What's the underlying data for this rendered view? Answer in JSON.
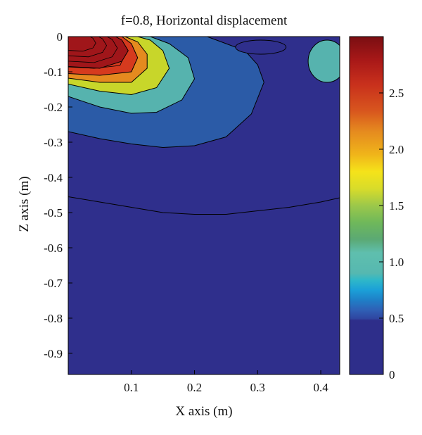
{
  "chart_data": {
    "type": "heatmap",
    "subtype": "filled-contour",
    "title": "f=0.8, Horizontal displacement",
    "xlabel": "X axis (m)",
    "ylabel": "Z axis (m)",
    "xlim": [
      0,
      0.43
    ],
    "ylim": [
      -0.96,
      0
    ],
    "xticks": [
      0.1,
      0.2,
      0.3,
      0.4
    ],
    "xtick_labels": [
      "0.1",
      "0.2",
      "0.3",
      "0.4"
    ],
    "yticks": [
      0,
      -0.1,
      -0.2,
      -0.3,
      -0.4,
      -0.5,
      -0.6,
      -0.7,
      -0.8,
      -0.9
    ],
    "ytick_labels": [
      "0",
      "-0.1",
      "-0.2",
      "-0.3",
      "-0.4",
      "-0.5",
      "-0.6",
      "-0.7",
      "-0.8",
      "-0.9"
    ],
    "colorbar": {
      "range": [
        0,
        3.0
      ],
      "ticks": [
        0,
        0.5,
        1.0,
        1.5,
        2.0,
        2.5
      ],
      "tick_labels": [
        "0",
        "0.5",
        "1.0",
        "1.5",
        "2.0",
        "2.5"
      ],
      "placement": "right"
    },
    "contour_regions": [
      {
        "level": 0.3,
        "color": "#2f2f8c",
        "boundary_z": [
          [
            0.0,
            -0.455
          ],
          [
            0.05,
            -0.47
          ],
          [
            0.1,
            -0.485
          ],
          [
            0.15,
            -0.5
          ],
          [
            0.2,
            -0.505
          ],
          [
            0.25,
            -0.505
          ],
          [
            0.3,
            -0.495
          ],
          [
            0.35,
            -0.485
          ],
          [
            0.4,
            -0.47
          ],
          [
            0.43,
            -0.458
          ]
        ]
      },
      {
        "level": 0.8,
        "color": "#2b5ba7",
        "boundary_z": [
          [
            0.0,
            -0.27
          ],
          [
            0.05,
            -0.29
          ],
          [
            0.1,
            -0.305
          ],
          [
            0.15,
            -0.315
          ],
          [
            0.2,
            -0.31
          ],
          [
            0.25,
            -0.285
          ],
          [
            0.29,
            -0.22
          ],
          [
            0.31,
            -0.13
          ],
          [
            0.3,
            -0.08
          ],
          [
            0.28,
            -0.04
          ],
          [
            0.25,
            -0.02
          ],
          [
            0.22,
            0.0
          ]
        ]
      },
      {
        "level": 1.1,
        "color": "#56b3ae",
        "boundary_z": [
          [
            0.0,
            -0.17
          ],
          [
            0.05,
            -0.2
          ],
          [
            0.1,
            -0.218
          ],
          [
            0.14,
            -0.215
          ],
          [
            0.18,
            -0.18
          ],
          [
            0.2,
            -0.12
          ],
          [
            0.19,
            -0.06
          ],
          [
            0.16,
            -0.02
          ],
          [
            0.13,
            0.0
          ]
        ]
      },
      {
        "level": 1.75,
        "color": "#c8d62a",
        "boundary_z": [
          [
            0.0,
            -0.135
          ],
          [
            0.05,
            -0.155
          ],
          [
            0.1,
            -0.165
          ],
          [
            0.14,
            -0.145
          ],
          [
            0.16,
            -0.09
          ],
          [
            0.15,
            -0.04
          ],
          [
            0.13,
            -0.01
          ],
          [
            0.11,
            0.0
          ]
        ]
      },
      {
        "level": 2.2,
        "color": "#e58a1f",
        "boundary_z": [
          [
            0.0,
            -0.118
          ],
          [
            0.05,
            -0.13
          ],
          [
            0.1,
            -0.13
          ],
          [
            0.125,
            -0.09
          ],
          [
            0.125,
            -0.05
          ],
          [
            0.11,
            -0.015
          ],
          [
            0.09,
            0.0
          ]
        ]
      },
      {
        "level": 2.5,
        "color": "#d63a1e",
        "boundary_z": [
          [
            0.0,
            -0.105
          ],
          [
            0.05,
            -0.11
          ],
          [
            0.1,
            -0.1
          ],
          [
            0.11,
            -0.06
          ],
          [
            0.1,
            -0.02
          ],
          [
            0.085,
            0.0
          ]
        ]
      },
      {
        "level": 2.8,
        "color": "#a0161a",
        "boundary_z": [
          [
            0.0,
            -0.085
          ],
          [
            0.05,
            -0.09
          ],
          [
            0.085,
            -0.07
          ],
          [
            0.095,
            -0.04
          ],
          [
            0.085,
            -0.01
          ],
          [
            0.075,
            0.0
          ]
        ]
      }
    ],
    "small_features": [
      {
        "description": "low-value pocket",
        "level": 0.3,
        "color": "#2f2f8c",
        "center": [
          0.305,
          -0.03
        ],
        "extent": [
          0.04,
          0.02
        ]
      },
      {
        "description": "elevated pocket",
        "level": 1.1,
        "color": "#56b3ae",
        "center": [
          0.41,
          -0.07
        ],
        "extent": [
          0.03,
          0.06
        ]
      }
    ]
  },
  "colors": {
    "background": "#2f2f8c",
    "colorbar_stops": [
      [
        0.0,
        "#2e2e8a"
      ],
      [
        0.16,
        "#2e2e8a"
      ],
      [
        0.165,
        "#2f45a0"
      ],
      [
        0.19,
        "#2f5fb5"
      ],
      [
        0.22,
        "#1f7fc7"
      ],
      [
        0.25,
        "#1ba0d8"
      ],
      [
        0.28,
        "#2fb8c8"
      ],
      [
        0.3,
        "#56b8b0"
      ],
      [
        0.36,
        "#5fbfae"
      ],
      [
        0.4,
        "#5ba974"
      ],
      [
        0.45,
        "#6fb85a"
      ],
      [
        0.5,
        "#9cc84a"
      ],
      [
        0.55,
        "#d8dc2a"
      ],
      [
        0.6,
        "#f5e31a"
      ],
      [
        0.65,
        "#f0b51a"
      ],
      [
        0.72,
        "#e58a1f"
      ],
      [
        0.78,
        "#d8561e"
      ],
      [
        0.86,
        "#c8301c"
      ],
      [
        0.93,
        "#a81818"
      ],
      [
        1.0,
        "#7a0e12"
      ]
    ]
  }
}
